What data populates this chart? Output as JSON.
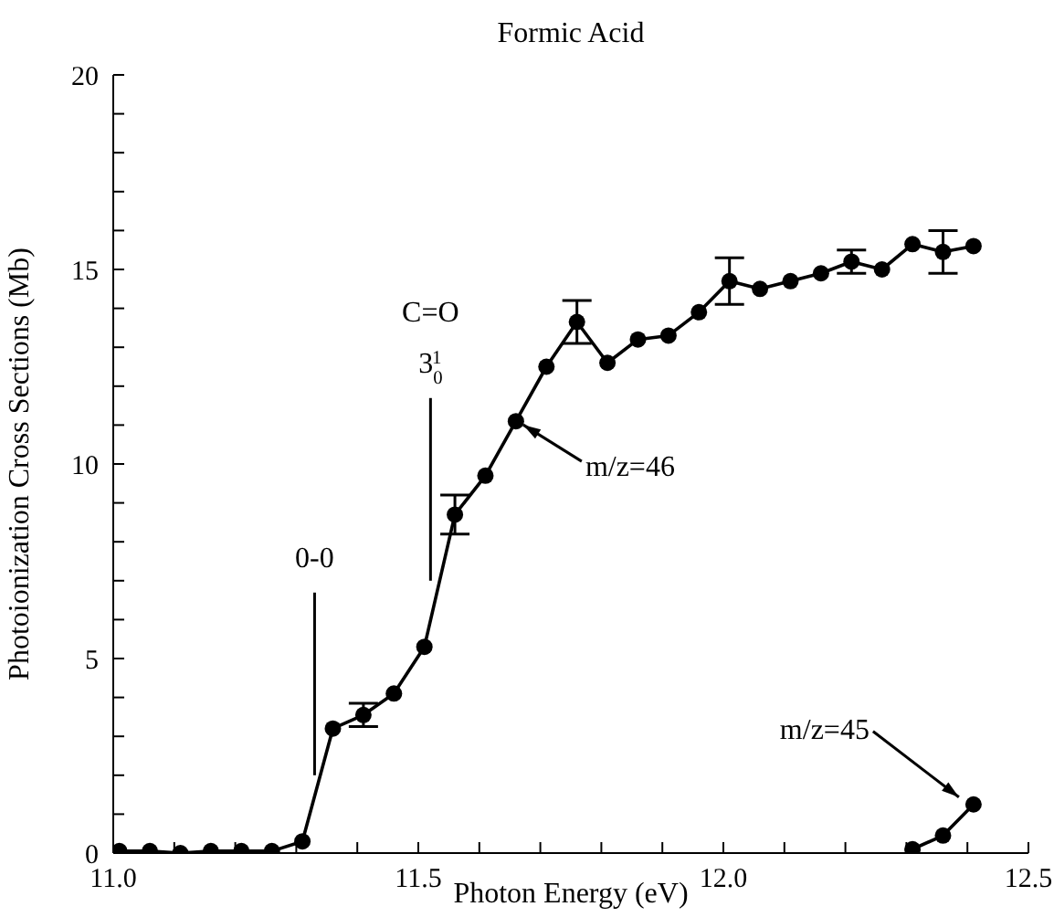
{
  "chart_data": {
    "type": "line",
    "title": "Formic Acid",
    "xlabel": "Photon Energy (eV)",
    "ylabel": "Photoionization Cross Sections (Mb)",
    "series": [
      {
        "color": "#000000",
        "x": [
          11.01,
          11.06,
          11.11,
          11.16,
          11.21,
          11.26,
          11.31,
          11.36,
          11.41,
          11.46,
          11.51,
          11.56,
          11.61,
          11.66,
          11.71,
          11.76,
          11.81,
          11.86,
          11.91,
          11.96,
          12.01,
          12.06,
          12.11,
          12.16,
          12.21,
          12.26,
          12.31,
          12.36,
          12.41
        ],
        "values": [
          0.05,
          0.05,
          0,
          0.05,
          0.05,
          0.05,
          0.3,
          3.2,
          3.55,
          4.1,
          5.3,
          8.7,
          9.7,
          11.1,
          12.5,
          13.65,
          12.6,
          13.2,
          13.3,
          13.9,
          14.7,
          14.5,
          14.7,
          14.9,
          15.2,
          15.0,
          15.65,
          15.45,
          15.6
        ],
        "errors": [
          null,
          null,
          null,
          null,
          null,
          null,
          null,
          null,
          0.3,
          null,
          null,
          0.5,
          null,
          null,
          null,
          0.55,
          null,
          null,
          null,
          null,
          0.6,
          null,
          null,
          null,
          0.3,
          null,
          null,
          0.55,
          null
        ]
      },
      {
        "color": "#000000",
        "x": [
          12.31,
          12.36,
          12.41
        ],
        "values": [
          0.1,
          0.45,
          1.25
        ]
      }
    ],
    "annotations": [
      {
        "text": "0-0",
        "x": 11.33,
        "y": 2
      },
      {
        "text": "C=O 3$_{0}$$^{1}$",
        "x": 11.52,
        "y": 7
      },
      {
        "text": "m/z=46",
        "x": 11.66,
        "y": 11.1
      },
      {
        "text": "m/z=45",
        "x": 12.41,
        "y": 1.25
      }
    ],
    "xlim": [
      11.0,
      12.5
    ],
    "xticks": [
      {
        "value": 11,
        "label": "11.0"
      },
      {
        "value": 11.1,
        "label": null
      },
      {
        "value": 11.2,
        "label": null
      },
      {
        "value": 11.3,
        "label": null
      },
      {
        "value": 11.4,
        "label": null
      },
      11.5,
      {
        "value": 11.6,
        "label": null
      },
      {
        "value": 11.7,
        "label": null
      },
      {
        "value": 11.8,
        "label": null
      },
      {
        "value": 11.9,
        "label": null
      },
      {
        "value": 12,
        "label": "12.0"
      },
      {
        "value": 12.1,
        "label": null
      },
      {
        "value": 12.2,
        "label": null
      },
      {
        "value": 12.3,
        "label": null
      },
      {
        "value": 12.4,
        "label": null
      },
      12.5
    ],
    "ylim": [
      0,
      20
    ],
    "yticks": [
      0,
      {
        "value": 1,
        "label": null
      },
      {
        "value": 2,
        "label": null
      },
      {
        "value": 3,
        "label": null
      },
      {
        "value": 4,
        "label": null
      },
      5,
      {
        "value": 6,
        "label": null
      },
      {
        "value": 7,
        "label": null
      },
      {
        "value": 8,
        "label": null
      },
      {
        "value": 9,
        "label": null
      },
      10,
      {
        "value": 11,
        "label": null
      },
      {
        "value": 12,
        "label": null
      },
      {
        "value": 13,
        "label": null
      },
      {
        "value": 14,
        "label": null
      },
      15,
      {
        "value": 16,
        "label": null
      },
      {
        "value": 17,
        "label": null
      },
      {
        "value": 18,
        "label": null
      },
      {
        "value": 19,
        "label": null
      },
      20
    ],
    "grid": false,
    "legend": false,
    "marker": "circle",
    "line_style": "solid"
  }
}
